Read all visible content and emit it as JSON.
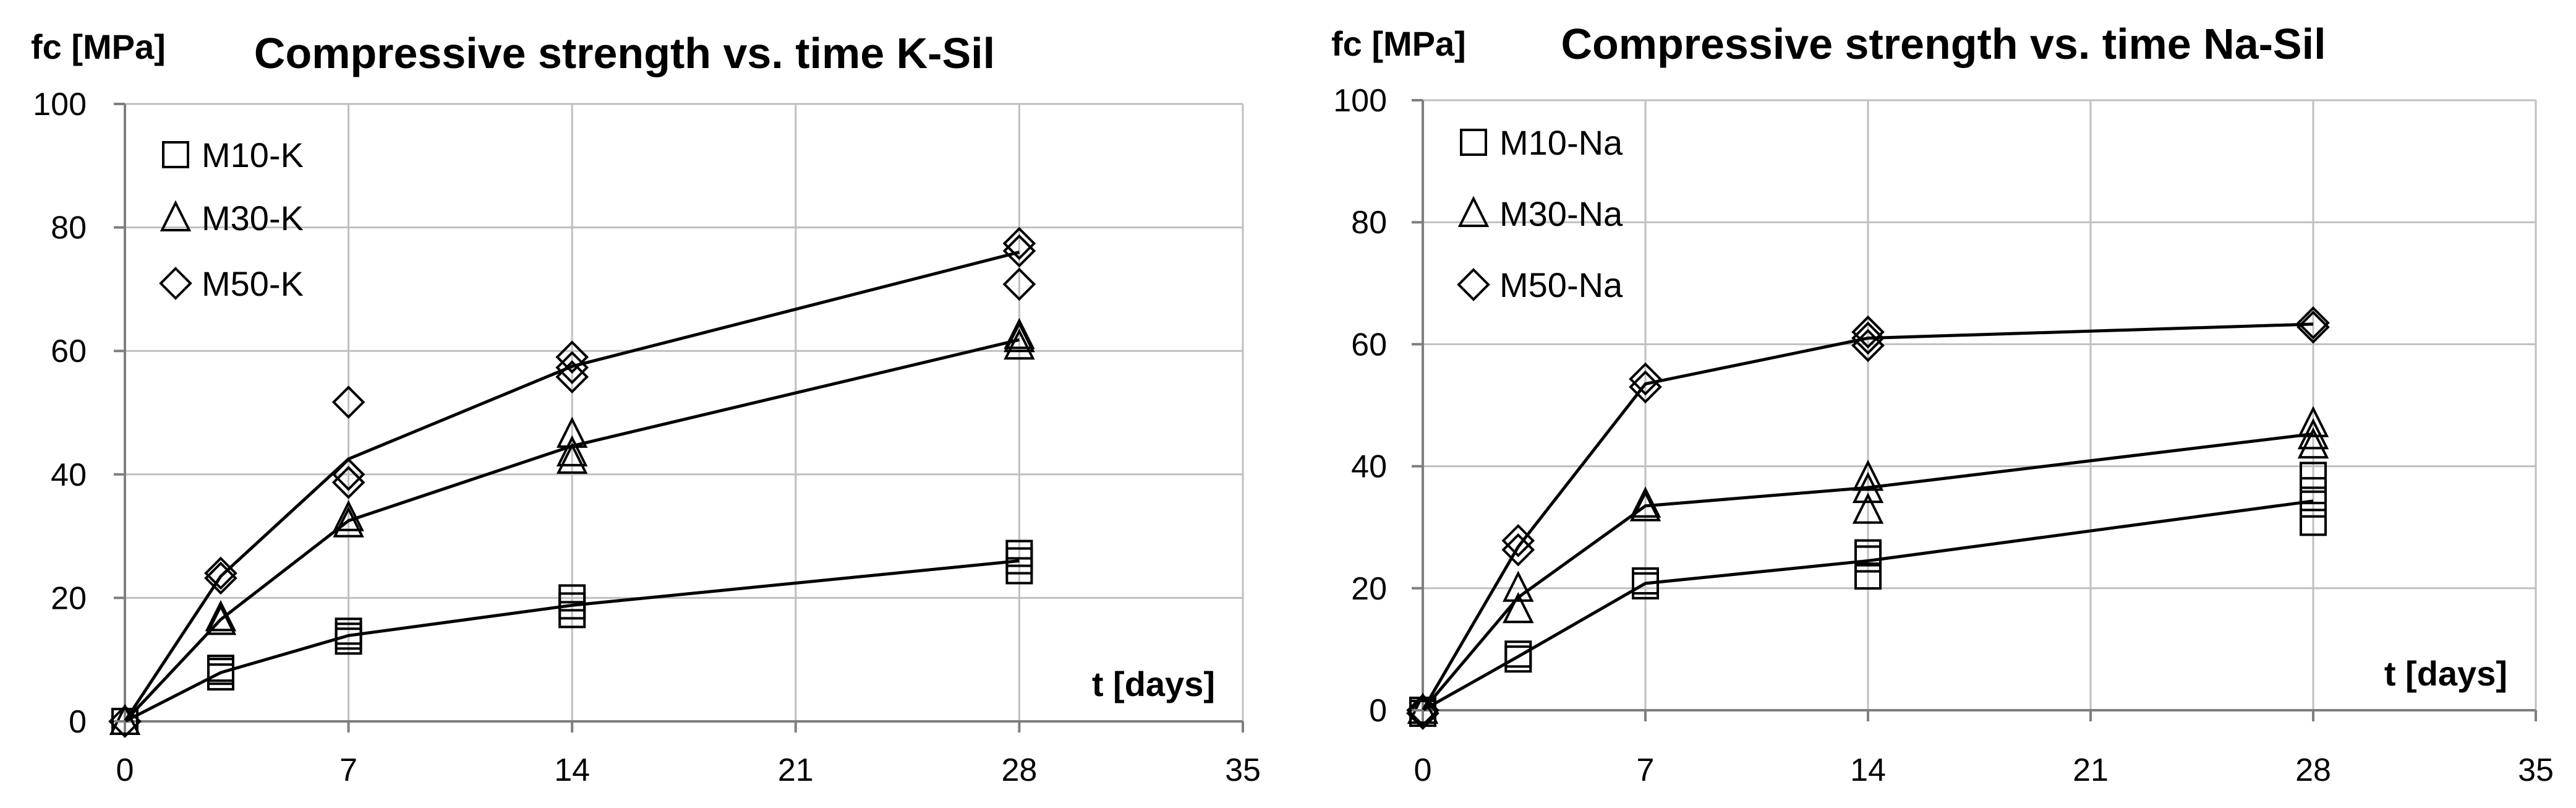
{
  "chart_data": [
    {
      "type": "scatter",
      "title": "Compressive strength vs. time  K-Sil",
      "ylabel": "fc [MPa]",
      "xlabel": "t [days]",
      "xlim": [
        0,
        35
      ],
      "ylim": [
        0,
        100
      ],
      "xticks": [
        "0",
        "7",
        "14",
        "21",
        "28",
        "35"
      ],
      "yticks": [
        "0",
        "20",
        "40",
        "60",
        "80",
        "100"
      ],
      "grid": true,
      "legend_position": "top-left",
      "series": [
        {
          "name": "M10-K",
          "marker": "square",
          "mean_line": [
            [
              0,
              0
            ],
            [
              3,
              7.9
            ],
            [
              7,
              13.9
            ],
            [
              14,
              18.8
            ],
            [
              28,
              26.0
            ]
          ],
          "points": [
            [
              0,
              0
            ],
            [
              3,
              7.2
            ],
            [
              3,
              8.1
            ],
            [
              3,
              8.6
            ],
            [
              7,
              13.0
            ],
            [
              7,
              13.8
            ],
            [
              7,
              14.6
            ],
            [
              14,
              17.3
            ],
            [
              14,
              18.7
            ],
            [
              14,
              20.0
            ],
            [
              28,
              24.4
            ],
            [
              28,
              26.0
            ],
            [
              28,
              27.2
            ]
          ]
        },
        {
          "name": "M30-K",
          "marker": "triangle",
          "mean_line": [
            [
              0,
              0
            ],
            [
              3,
              16.5
            ],
            [
              7,
              32.5
            ],
            [
              14,
              44.6
            ],
            [
              28,
              61.8
            ]
          ],
          "points": [
            [
              0,
              0
            ],
            [
              3,
              16.2
            ],
            [
              3,
              16.8
            ],
            [
              7,
              32.0
            ],
            [
              7,
              33.0
            ],
            [
              14,
              42.3
            ],
            [
              14,
              43.5
            ],
            [
              14,
              46.5
            ],
            [
              28,
              60.8
            ],
            [
              28,
              62.0
            ],
            [
              28,
              62.5
            ]
          ]
        },
        {
          "name": "M50-K",
          "marker": "diamond",
          "mean_line": [
            [
              0,
              0
            ],
            [
              3,
              23.5
            ],
            [
              7,
              42.5
            ],
            [
              14,
              57.5
            ],
            [
              28,
              76.0
            ]
          ],
          "points": [
            [
              0,
              0
            ],
            [
              3,
              23.2
            ],
            [
              3,
              24.0
            ],
            [
              7,
              38.7
            ],
            [
              7,
              40.0
            ],
            [
              7,
              51.7
            ],
            [
              14,
              55.8
            ],
            [
              14,
              57.3
            ],
            [
              14,
              59.0
            ],
            [
              28,
              70.8
            ],
            [
              28,
              76.2
            ],
            [
              28,
              77.4
            ]
          ]
        }
      ]
    },
    {
      "type": "scatter",
      "title": "Compressive strength vs. time  Na-Sil",
      "ylabel": "fc [MPa]",
      "xlabel": "t [days]",
      "xlim": [
        0,
        35
      ],
      "ylim": [
        0,
        100
      ],
      "xticks": [
        "0",
        "7",
        "14",
        "21",
        "28",
        "35"
      ],
      "yticks": [
        "0",
        "20",
        "40",
        "60",
        "80",
        "100"
      ],
      "grid": true,
      "legend_position": "top-left",
      "series": [
        {
          "name": "M10-Na",
          "marker": "square",
          "mean_line": [
            [
              0,
              0
            ],
            [
              3,
              8.8
            ],
            [
              7,
              20.8
            ],
            [
              14,
              24.5
            ],
            [
              28,
              34.3
            ]
          ],
          "points": [
            [
              0,
              -0.5
            ],
            [
              0,
              0
            ],
            [
              3,
              8.4
            ],
            [
              3,
              9.2
            ],
            [
              7,
              20.4
            ],
            [
              7,
              21.2
            ],
            [
              14,
              22.0
            ],
            [
              14,
              24.8
            ],
            [
              14,
              25.8
            ],
            [
              28,
              30.8
            ],
            [
              28,
              33.8
            ],
            [
              28,
              36.0
            ],
            [
              28,
              38.5
            ]
          ]
        },
        {
          "name": "M30-Na",
          "marker": "triangle",
          "mean_line": [
            [
              0,
              0
            ],
            [
              3,
              18.5
            ],
            [
              7,
              33.5
            ],
            [
              14,
              36.5
            ],
            [
              28,
              45.3
            ]
          ],
          "points": [
            [
              0,
              0
            ],
            [
              3,
              16.5
            ],
            [
              3,
              20.0
            ],
            [
              7,
              33.2
            ],
            [
              7,
              33.8
            ],
            [
              14,
              32.8
            ],
            [
              14,
              36.2
            ],
            [
              14,
              38.2
            ],
            [
              28,
              43.5
            ],
            [
              28,
              45.0
            ],
            [
              28,
              47.0
            ]
          ]
        },
        {
          "name": "M50-Na",
          "marker": "diamond",
          "mean_line": [
            [
              0,
              0
            ],
            [
              3,
              26.8
            ],
            [
              7,
              53.5
            ],
            [
              14,
              61.0
            ],
            [
              28,
              63.3
            ]
          ],
          "points": [
            [
              0,
              -0.5
            ],
            [
              0,
              0
            ],
            [
              3,
              26.3
            ],
            [
              3,
              27.8
            ],
            [
              7,
              53.0
            ],
            [
              7,
              54.3
            ],
            [
              14,
              59.8
            ],
            [
              14,
              61.0
            ],
            [
              14,
              62.0
            ],
            [
              28,
              62.8
            ],
            [
              28,
              63.5
            ]
          ]
        }
      ]
    }
  ]
}
